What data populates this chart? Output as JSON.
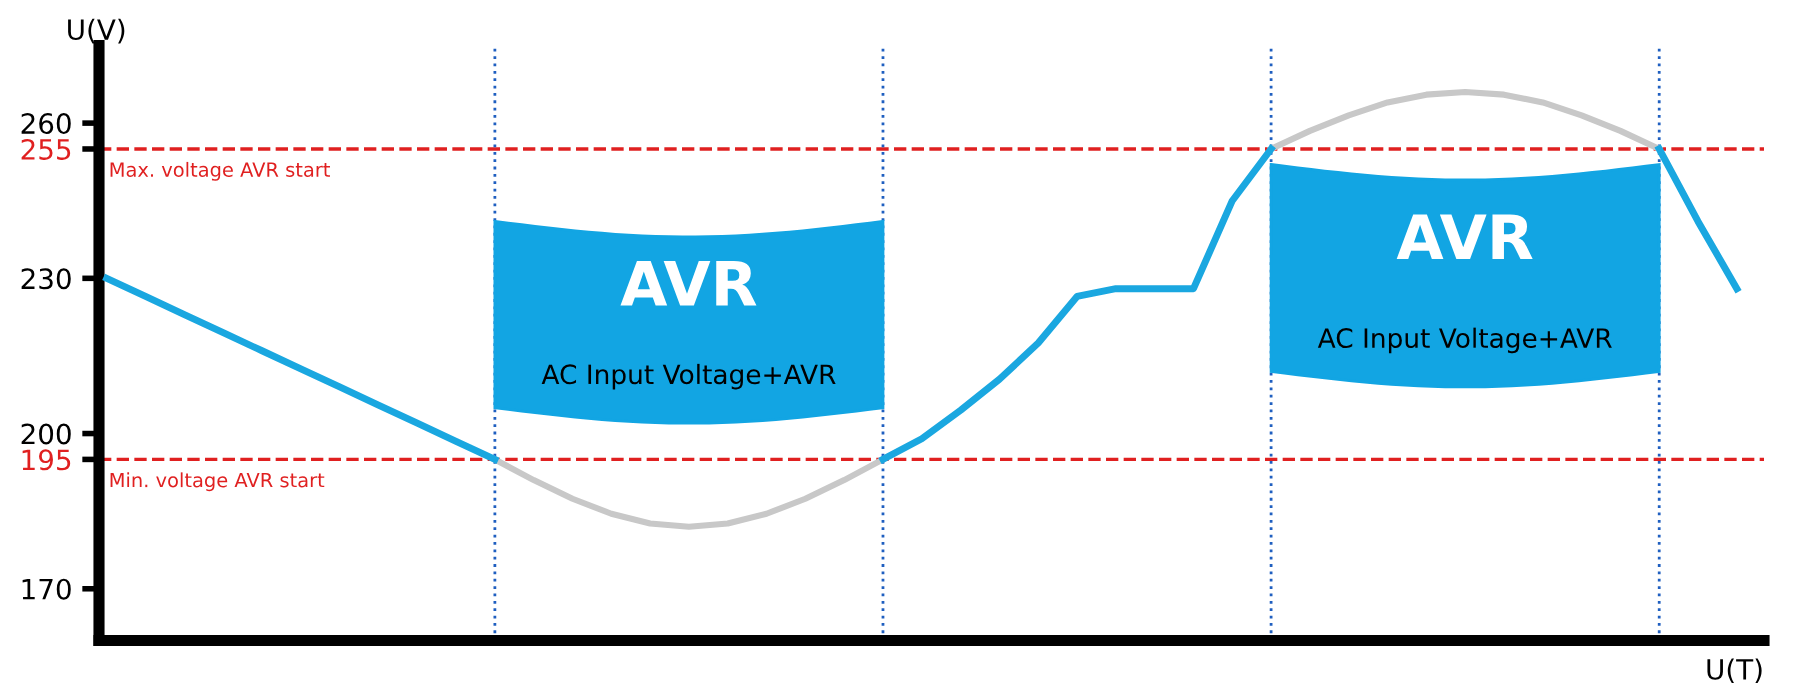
{
  "chart_data": {
    "type": "line",
    "xlabel": "U(T)",
    "ylabel": "U(V)",
    "categories": [
      null,
      null,
      null,
      null,
      null,
      null,
      null,
      null,
      null,
      null,
      null,
      null,
      null,
      null,
      null,
      null,
      null,
      null,
      null,
      null,
      null,
      null,
      null,
      null,
      null,
      null,
      null,
      null,
      null,
      null,
      null,
      null,
      null,
      null,
      null,
      null,
      null,
      null,
      null,
      null,
      null,
      null,
      null
    ],
    "series": [
      {
        "color": "#c8c8c8",
        "values": [
          null,
          null,
          null,
          null,
          null,
          null,
          null,
          null,
          null,
          null,
          195,
          191,
          187.4,
          184.5,
          182.6,
          182,
          182.6,
          184.5,
          187.4,
          191,
          195,
          null,
          null,
          null,
          null,
          null,
          null,
          null,
          null,
          null,
          255,
          258.5,
          261.5,
          264,
          265.5,
          266,
          265.5,
          264,
          261.5,
          258.5,
          255,
          null,
          null
        ]
      },
      {
        "color": "#1aa7e0",
        "values": [
          230,
          226.5,
          223,
          219.5,
          216,
          212.5,
          209,
          205.5,
          202,
          198.5,
          195,
          null,
          null,
          null,
          null,
          null,
          null,
          null,
          null,
          null,
          195,
          199,
          204.5,
          210.5,
          217.5,
          226.5,
          228,
          228,
          228,
          245,
          255,
          null,
          null,
          null,
          null,
          null,
          null,
          null,
          null,
          null,
          255,
          241,
          228
        ]
      }
    ],
    "ylim": [
      160,
      275
    ],
    "yticks": [
      170,
      195,
      200,
      230,
      255,
      260
    ],
    "tick_labels": "y",
    "grid": false,
    "legend": false,
    "marker": "none",
    "line_style": "solid",
    "ref_lines": [
      {
        "axis": "y",
        "value": 255,
        "label": "Max. voltage AVR start",
        "color": "#e02020",
        "line_style": "dashed"
      },
      {
        "axis": "y",
        "value": 195,
        "label": "Min. voltage AVR start",
        "color": "#e02020",
        "line_style": "dashed"
      }
    ],
    "annotations": [
      "AVR",
      "AC Input Voltage+AVR",
      "AVR",
      "AC Input Voltage+AVR"
    ]
  }
}
